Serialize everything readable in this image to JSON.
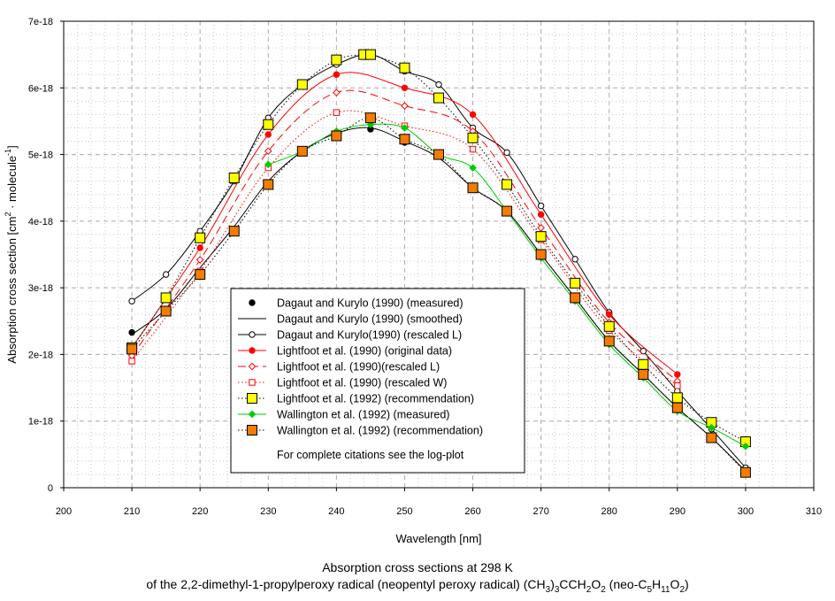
{
  "chart_data": {
    "type": "line",
    "xlabel": "Wavelength [nm]",
    "ylabel": "Absorption cross section [cm",
    "ylabel_sup1": "2",
    "ylabel_mid": " · molecule",
    "ylabel_sup2": "-1",
    "ylabel_end": "]",
    "xlim": [
      200,
      310
    ],
    "ylim": [
      0,
      7e-18
    ],
    "xticks": [
      200,
      210,
      220,
      230,
      240,
      250,
      260,
      270,
      280,
      290,
      300,
      310
    ],
    "xtick_labels": [
      "200",
      "210",
      "220",
      "230",
      "240",
      "250",
      "260",
      "270",
      "280",
      "290",
      "300",
      "310"
    ],
    "yticks": [
      0,
      1e-18,
      2e-18,
      3e-18,
      4e-18,
      5e-18,
      6e-18,
      7e-18
    ],
    "ytick_labels": [
      "0",
      "1e-18",
      "2e-18",
      "3e-18",
      "4e-18",
      "5e-18",
      "6e-18",
      "7e-18"
    ],
    "grid": true,
    "legend_position": "lower-center",
    "series": [
      {
        "name": "Dagaut and Kurylo (1990) (measured)",
        "line": "none",
        "color": "#000000",
        "marker": "dot",
        "marker_fill": "#000000",
        "x": [
          210,
          230,
          245,
          250
        ],
        "y": [
          2.33e-18,
          4.58e-18,
          5.38e-18,
          5.18e-18
        ]
      },
      {
        "name": "Dagaut and Kurylo (1990) (smoothed)",
        "line": "solid",
        "color": "#000000",
        "marker": "none",
        "marker_fill": "none",
        "x": [
          210,
          215,
          220,
          225,
          230,
          235,
          240,
          245,
          250,
          255,
          260,
          265,
          270,
          275,
          280,
          285,
          290,
          295,
          300
        ],
        "y": [
          2.3e-18,
          2.68e-18,
          3.3e-18,
          3.92e-18,
          4.6e-18,
          5.05e-18,
          5.32e-18,
          5.4e-18,
          5.2e-18,
          4.95e-18,
          4.5e-18,
          4.15e-18,
          3.5e-18,
          2.85e-18,
          2.2e-18,
          1.7e-18,
          1.2e-18,
          7.5e-19,
          2.5e-19
        ]
      },
      {
        "name": "Dagaut and Kurylo(1990) (rescaled L)",
        "line": "solid",
        "color": "#000000",
        "marker": "circle",
        "marker_fill": "#ffffff",
        "x": [
          210,
          215,
          220,
          225,
          230,
          235,
          240,
          245,
          250,
          255,
          260,
          265,
          270,
          275,
          280,
          285,
          290,
          295,
          300
        ],
        "y": [
          2.8e-18,
          3.2e-18,
          3.85e-18,
          4.6e-18,
          5.55e-18,
          6.05e-18,
          6.35e-18,
          6.5e-18,
          6.25e-18,
          6.05e-18,
          5.4e-18,
          5.03e-18,
          4.23e-18,
          3.43e-18,
          2.63e-18,
          2.05e-18,
          1.45e-18,
          8.8e-19,
          3e-19
        ]
      },
      {
        "name": "Lightfoot et al. (1990) (original data)",
        "line": "solid",
        "color": "#ff0000",
        "marker": "dot",
        "marker_fill": "#ff0000",
        "x": [
          210,
          220,
          230,
          240,
          250,
          260,
          270,
          280,
          290
        ],
        "y": [
          2.1e-18,
          3.6e-18,
          5.3e-18,
          6.2e-18,
          6e-18,
          5.6e-18,
          4.1e-18,
          2.6e-18,
          1.7e-18
        ]
      },
      {
        "name": "Lightfoot et al. (1990)(rescaled L)",
        "line": "dash",
        "color": "#ff0000",
        "marker": "diamond",
        "marker_fill": "#ffffff",
        "x": [
          210,
          220,
          230,
          240,
          250,
          260,
          270,
          280,
          290
        ],
        "y": [
          1.98e-18,
          3.42e-18,
          5.05e-18,
          5.93e-18,
          5.73e-18,
          5.35e-18,
          3.9e-18,
          2.48e-18,
          1.6e-18
        ]
      },
      {
        "name": "Lightfoot et al. (1990) (rescaled W)",
        "line": "dot",
        "color": "#ff0000",
        "marker": "square",
        "marker_fill": "#ffffff",
        "x": [
          210,
          220,
          230,
          240,
          250,
          260,
          270,
          280,
          290
        ],
        "y": [
          1.9e-18,
          3.25e-18,
          4.8e-18,
          5.63e-18,
          5.43e-18,
          5.08e-18,
          3.72e-18,
          2.36e-18,
          1.53e-18
        ]
      },
      {
        "name": "Lightfoot et al. (1992) (recommendation)",
        "line": "dot",
        "color": "#000000",
        "marker": "bigsquare",
        "marker_fill": "#ffff00",
        "x": [
          210,
          215,
          220,
          225,
          230,
          235,
          240,
          244,
          245,
          250,
          255,
          260,
          265,
          270,
          275,
          280,
          285,
          290,
          295,
          300
        ],
        "y": [
          2.1e-18,
          2.85e-18,
          3.75e-18,
          4.65e-18,
          5.45e-18,
          6.05e-18,
          6.42e-18,
          6.5e-18,
          6.5e-18,
          6.3e-18,
          5.85e-18,
          5.25e-18,
          4.55e-18,
          3.77e-18,
          3.07e-18,
          2.42e-18,
          1.85e-18,
          1.35e-18,
          9.8e-19,
          6.9e-19
        ]
      },
      {
        "name": "Wallington et al. (1992) (measured)",
        "line": "solid",
        "color": "#00cc00",
        "marker": "diamondfill",
        "marker_fill": "#00cc00",
        "x": [
          230,
          235,
          240,
          245,
          250,
          255,
          260,
          265,
          270,
          275,
          280,
          285,
          290,
          295,
          300
        ],
        "y": [
          4.85e-18,
          5.05e-18,
          5.35e-18,
          5.45e-18,
          5.4e-18,
          5e-18,
          4.8e-18,
          4.15e-18,
          3.45e-18,
          2.8e-18,
          2.15e-18,
          1.65e-18,
          1.15e-18,
          9e-19,
          6.2e-19
        ]
      },
      {
        "name": "Wallington et al. (1992) (recommendation)",
        "line": "dot",
        "color": "#000000",
        "marker": "bigsquare",
        "marker_fill": "#f47c00",
        "x": [
          210,
          215,
          220,
          225,
          230,
          235,
          240,
          245,
          250,
          255,
          260,
          265,
          270,
          275,
          280,
          285,
          290,
          295,
          300
        ],
        "y": [
          2.08e-18,
          2.65e-18,
          3.2e-18,
          3.85e-18,
          4.55e-18,
          5.05e-18,
          5.28e-18,
          5.55e-18,
          5.23e-18,
          5e-18,
          4.5e-18,
          4.15e-18,
          3.5e-18,
          2.85e-18,
          2.2e-18,
          1.7e-18,
          1.2e-18,
          7.5e-19,
          2.3e-19
        ]
      }
    ],
    "legend_note": "For complete citations see the log-plot"
  },
  "caption": {
    "line1": "Absorption cross sections at 298 K",
    "line2_a": "of the 2,2-dimethyl-1-propylperoxy radical (neopentyl peroxy radical) (CH",
    "sub1": "3",
    "line2_b": ")",
    "sub2": "3",
    "line2_c": "CCH",
    "sub3": "2",
    "line2_d": "O",
    "sub4": "2",
    "line2_e": " (neo-C",
    "sub5": "5",
    "line2_f": "H",
    "sub6": "11",
    "line2_g": "O",
    "sub7": "2",
    "line2_h": ")"
  }
}
